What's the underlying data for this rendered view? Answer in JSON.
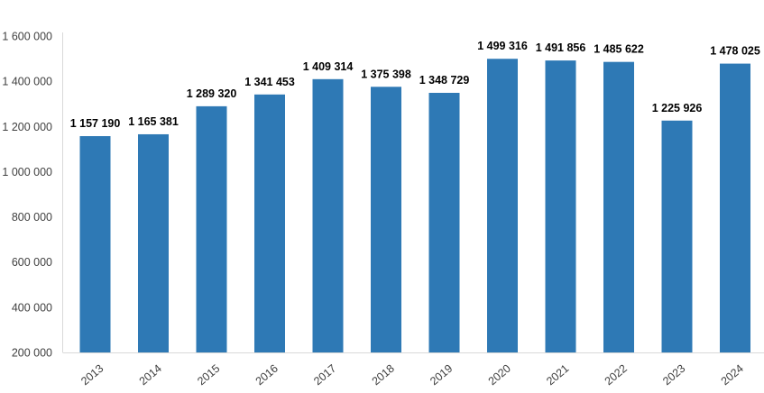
{
  "chart_data": {
    "type": "bar",
    "title": "",
    "xlabel": "",
    "ylabel": "",
    "categories": [
      "2013",
      "2014",
      "2015",
      "2016",
      "2017",
      "2018",
      "2019",
      "2020",
      "2021",
      "2022",
      "2023",
      "2024"
    ],
    "values": [
      1157190,
      1165381,
      1289320,
      1341453,
      1409314,
      1375398,
      1348729,
      1499316,
      1491856,
      1485622,
      1225926,
      1478025
    ],
    "value_labels": [
      "1 157 190",
      "1 165 381",
      "1 289 320",
      "1 341 453",
      "1 409 314",
      "1 375 398",
      "1 348 729",
      "1 499 316",
      "1 491 856",
      "1 485 622",
      "1 225 926",
      "1 478 025"
    ],
    "ylim": [
      200000,
      1600000
    ],
    "ytick_values": [
      200000,
      400000,
      600000,
      800000,
      1000000,
      1200000,
      1400000,
      1600000
    ],
    "ytick_labels": [
      "200 000",
      "400 000",
      "600 000",
      "800 000",
      "1 000 000",
      "1 200 000",
      "1 400 000",
      "1 600 000"
    ],
    "grid": false,
    "legend": false,
    "bar_color": "#2E79B5",
    "axis_line_color": "#D9D9D9",
    "ytick_label_color": "#404040",
    "xtick_label_color": "#404040",
    "data_label_color": "#000000",
    "background_color": "#FFFFFF"
  }
}
